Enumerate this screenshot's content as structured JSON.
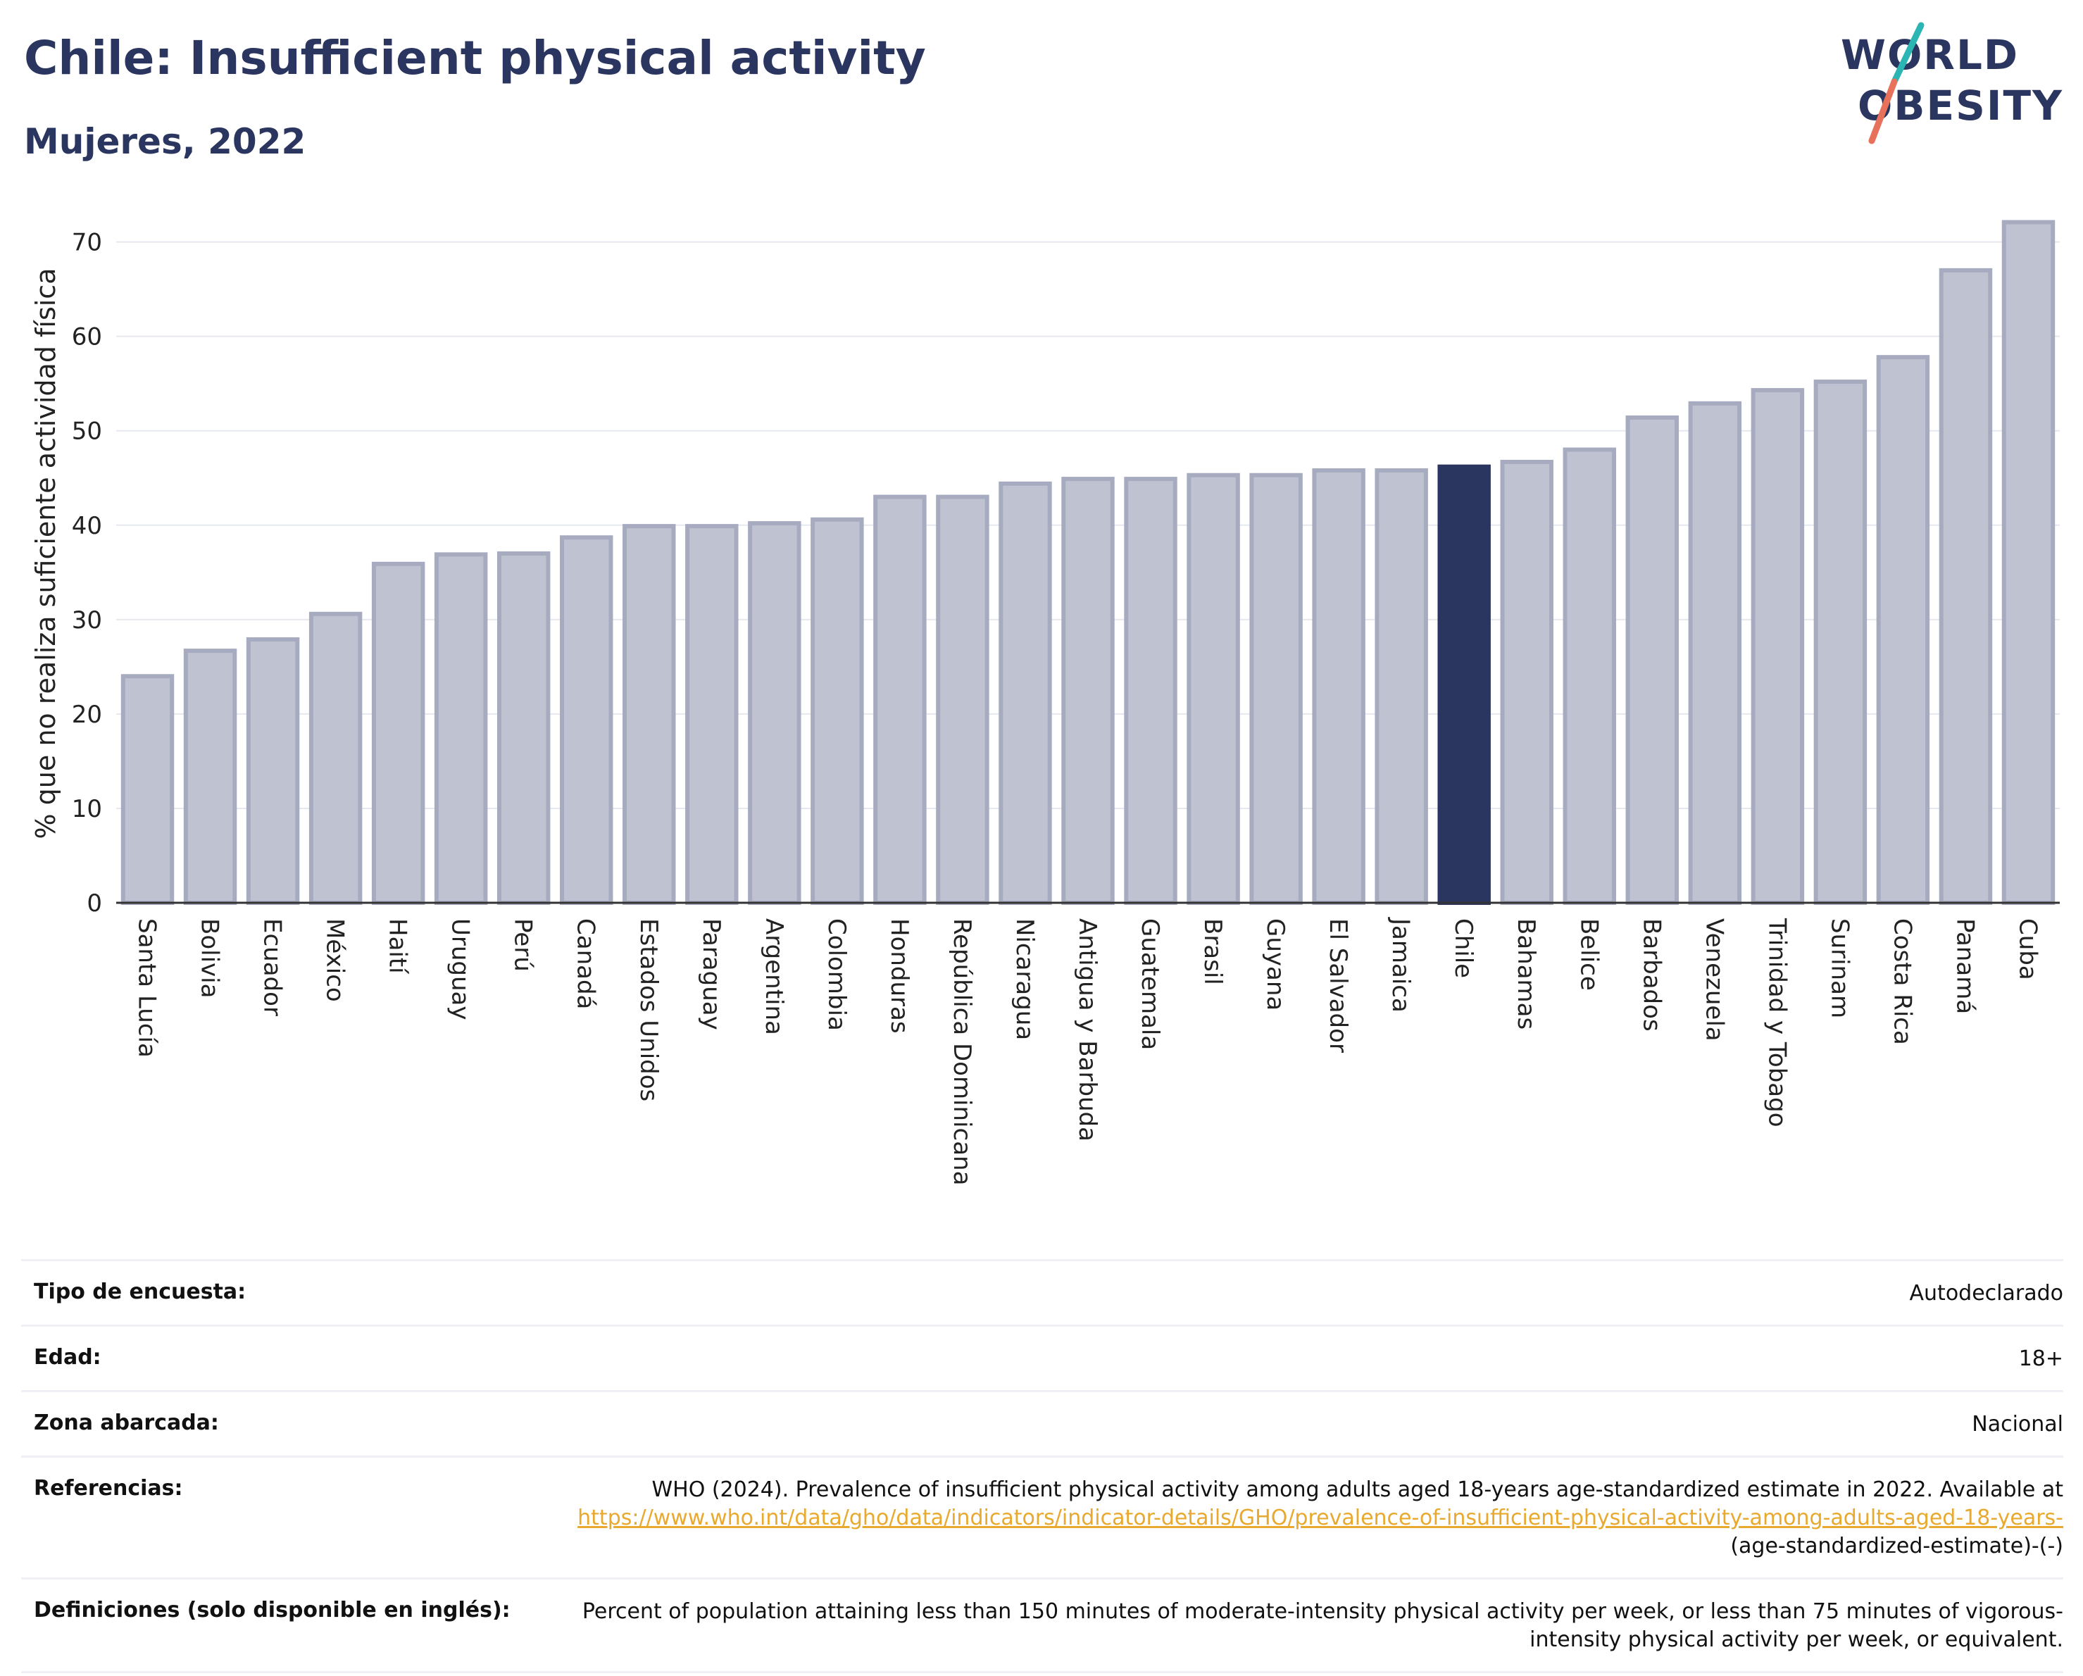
{
  "header": {
    "title": "Chile: Insufficient physical activity",
    "subtitle": "Mujeres, 2022"
  },
  "logo": {
    "line1": "WORLD",
    "line2": "OBESITY"
  },
  "colors": {
    "highlight": "#2b3660",
    "bar_fill": "#bfc2d0",
    "bar_stroke": "#a7abc0",
    "accent_teal": "#2bb5b3",
    "accent_coral": "#e8715c",
    "link": "#e8a92e"
  },
  "chart_data": {
    "type": "bar",
    "ylabel": "% que no realiza suficiente actividad física",
    "ylim": [
      0,
      74
    ],
    "yticks": [
      0,
      10,
      20,
      30,
      40,
      50,
      60,
      70
    ],
    "grid": true,
    "highlight": "Chile",
    "categories": [
      "Santa Lucía",
      "Bolivia",
      "Ecuador",
      "México",
      "Haití",
      "Uruguay",
      "Perú",
      "Canadá",
      "Estados Unidos",
      "Paraguay",
      "Argentina",
      "Colombia",
      "Honduras",
      "República Dominicana",
      "Nicaragua",
      "Antigua y Barbuda",
      "Guatemala",
      "Brasil",
      "Guyana",
      "El Salvador",
      "Jamaica",
      "Chile",
      "Bahamas",
      "Belice",
      "Barbados",
      "Venezuela",
      "Trinidad y Tobago",
      "Surinam",
      "Costa Rica",
      "Panamá",
      "Cuba"
    ],
    "values": [
      24.0,
      26.7,
      27.9,
      30.6,
      35.9,
      36.9,
      37.0,
      38.7,
      39.9,
      39.9,
      40.2,
      40.6,
      43.0,
      43.0,
      44.4,
      44.9,
      44.9,
      45.3,
      45.3,
      45.8,
      45.8,
      46.2,
      46.7,
      48.0,
      51.4,
      52.9,
      54.3,
      55.2,
      57.8,
      67.0,
      72.1
    ]
  },
  "meta": {
    "rows": [
      {
        "key": "Tipo de encuesta:",
        "value": "Autodeclarado"
      },
      {
        "key": "Edad:",
        "value": "18+"
      },
      {
        "key": "Zona abarcada:",
        "value": "Nacional"
      }
    ],
    "references": {
      "key": "Referencias:",
      "text": "WHO (2024). Prevalence of insufficient physical activity among adults aged 18-years age-standardized estimate in 2022. Available at",
      "link": "https://www.who.int/data/gho/data/indicators/indicator-details/GHO/prevalence-of-insufficient-physical-activity-among-adults-aged-18-years-",
      "suffix": "(age-standardized-estimate)-(-)"
    },
    "definitions": {
      "key": "Definiciones (solo disponible en inglés):",
      "value": "Percent of population attaining less than 150 minutes of moderate-intensity physical activity per week, or less than 75 minutes of vigorous-intensity physical activity per week, or equivalent."
    }
  }
}
